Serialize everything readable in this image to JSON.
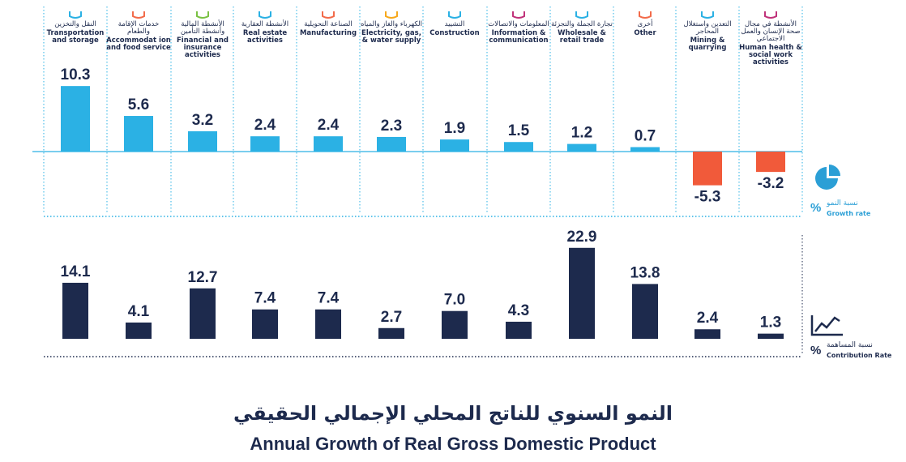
{
  "chart_data": {
    "type": "bar",
    "categories": [
      {
        "ar": "النقل والتخزين",
        "en": "Transportation and storage",
        "icon": "truck-icon",
        "color": "#2bb1e4"
      },
      {
        "ar": "خدمات الإقامة والطعام",
        "en": "Accommodat ion and food service",
        "icon": "tent-icon",
        "color": "#f26b4a"
      },
      {
        "ar": "الأنشطة المالية وأنشطة التأمين",
        "en": "Financial and insurance activities",
        "icon": "finance-icon",
        "color": "#7ac143"
      },
      {
        "ar": "الأنشطة العقارية",
        "en": "Real estate activities",
        "icon": "building-icon",
        "color": "#2bb1e4"
      },
      {
        "ar": "الصناعة التحويلية",
        "en": "Manufacturing",
        "icon": "factory-icon",
        "color": "#f26b4a"
      },
      {
        "ar": "الكهرباء والغاز والمياه",
        "en": "Electricity, gas, & water supply",
        "icon": "utility-icon",
        "color": "#f7a81b"
      },
      {
        "ar": "التشييد",
        "en": "Construction",
        "icon": "construction-icon",
        "color": "#2bb1e4"
      },
      {
        "ar": "المعلومات والاتصالات",
        "en": "Information & communication",
        "icon": "network-icon",
        "color": "#c0327a"
      },
      {
        "ar": "تجارة الجملة والتجزئة",
        "en": "Wholesale & retail trade",
        "icon": "shop-icon",
        "color": "#2bb1e4"
      },
      {
        "ar": "أخرى",
        "en": "Other",
        "icon": "other-icon",
        "color": "#f26b4a"
      },
      {
        "ar": "التعدين واستغلال المحاجر",
        "en": "Mining & quarrying",
        "icon": "mining-icon",
        "color": "#2bb1e4"
      },
      {
        "ar": "الأنشطة في مجال صحة الإنسان والعمل الاجتماعي",
        "en": "Human health & social work activities",
        "icon": "health-icon",
        "color": "#c0327a"
      }
    ],
    "series": [
      {
        "values": [
          10.3,
          5.6,
          3.2,
          2.4,
          2.4,
          2.3,
          1.9,
          1.5,
          1.2,
          0.7,
          -5.3,
          -3.2
        ]
      },
      {
        "values": [
          14.1,
          4.1,
          12.7,
          7.4,
          7.4,
          2.7,
          7.0,
          4.3,
          22.9,
          13.8,
          2.4,
          1.3
        ]
      }
    ],
    "colors": {
      "positive": "#2bb1e4",
      "negative": "#f15a3a",
      "contribution": "#1d2a4d"
    },
    "title_ar": "النمو السنوي للناتج المحلي الإجمالي الحقيقي",
    "title_en": "Annual Growth of Real Gross Domestic Product"
  },
  "legend": {
    "growth_ar": "نسبة النمو",
    "growth_en": "Growth rate",
    "contribution_ar": "نسبة المساهمة",
    "contribution_en": "Contribution Rate",
    "percent_symbol": "%",
    "growth_icon": "pie-chart-icon",
    "contribution_icon": "line-chart-icon"
  }
}
